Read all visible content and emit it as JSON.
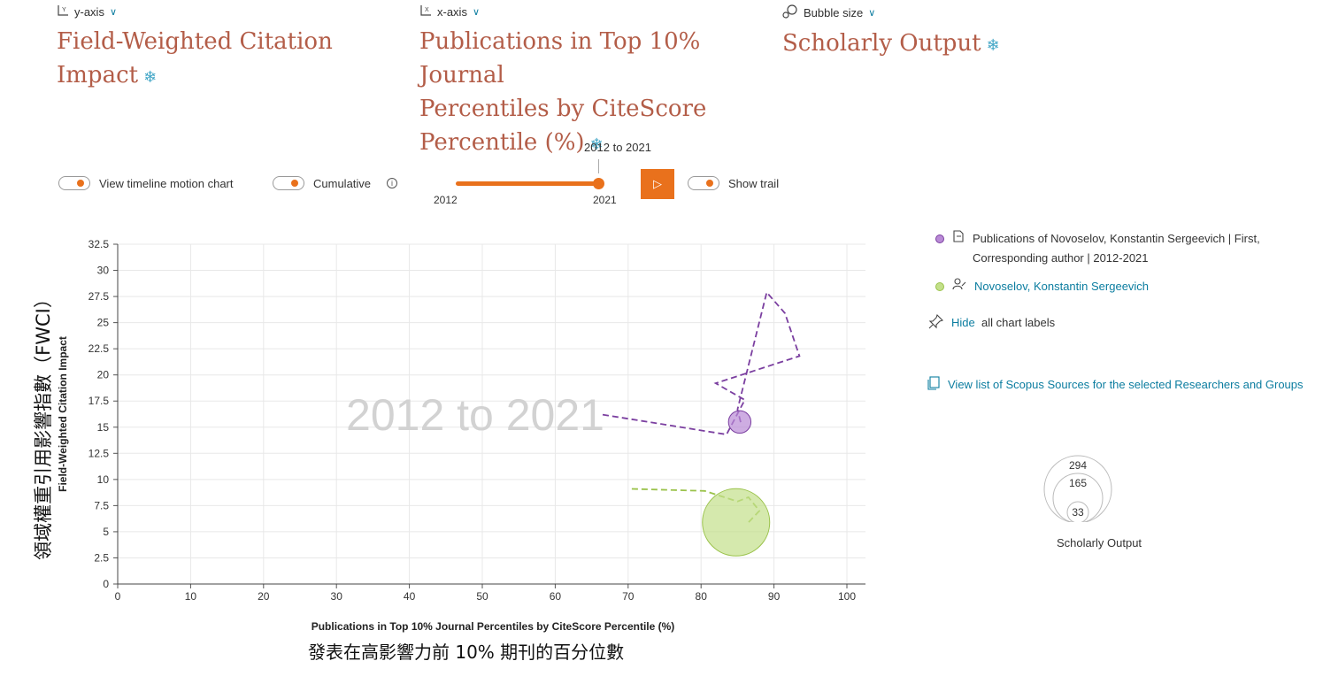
{
  "selectors": {
    "y_axis": {
      "label": "y-axis",
      "metric": "Field-Weighted Citation Impact"
    },
    "x_axis": {
      "label": "x-axis",
      "metric_line1": "Publications in Top 10% Journal",
      "metric_line2": "Percentiles by CiteScore",
      "metric_line3": "Percentile (%)"
    },
    "bubble": {
      "label": "Bubble size",
      "metric": "Scholarly Output"
    }
  },
  "controls": {
    "timeline_toggle": "View timeline motion chart",
    "cumulative_toggle": "Cumulative",
    "info_glyph": "i",
    "slider_range_label": "2012 to 2021",
    "slider_start": "2012",
    "slider_end": "2021",
    "play_glyph": "▷",
    "trail_toggle": "Show trail"
  },
  "legend": {
    "series1_line1": "Publications of Novoselov, Konstantin Sergeevich | First,",
    "series1_line2": "Corresponding author | 2012-2021",
    "series2": "Novoselov, Konstantin Sergeevich",
    "hide_link": "Hide",
    "hide_rest": "all chart labels",
    "view_list": "View list of Scopus Sources for the selected Researchers and Groups",
    "size_values": [
      "294",
      "165",
      "33"
    ],
    "size_caption": "Scholarly Output"
  },
  "annotations": {
    "y_chinese": "領域權重引用影響指數（FWCI）",
    "x_chinese": "發表在高影響力前 10% 期刊的百分位數"
  },
  "colors": {
    "accent": "#e9711c",
    "metric_text": "#b35d48",
    "link": "#0c7da0",
    "series1": "#7b3fa0",
    "series1_fill": "#b98ad6",
    "series2": "#9ac24a",
    "series2_fill": "#c3e08a"
  },
  "chart_data": {
    "type": "scatter",
    "watermark": "2012 to 2021",
    "xlabel": "Publications in Top 10% Journal Percentiles by CiteScore Percentile (%)",
    "ylabel": "Field-Weighted Citation Impact",
    "xlim": [
      0,
      100
    ],
    "ylim": [
      0,
      32.5
    ],
    "x_ticks": [
      0,
      10,
      20,
      30,
      40,
      50,
      60,
      70,
      80,
      90,
      100
    ],
    "y_ticks": [
      0,
      2.5,
      5,
      7.5,
      10,
      12.5,
      15,
      17.5,
      20,
      22.5,
      25,
      27.5,
      30,
      32.5
    ],
    "grid": true,
    "series": [
      {
        "name": "Publications of Novoselov, Konstantin Sergeevich | First, Corresponding author | 2012-2021",
        "color": "#7b3fa0",
        "fill": "#b98ad6",
        "trail": [
          [
            66.5,
            16.2
          ],
          [
            83.5,
            14.3
          ],
          [
            86,
            17.6
          ],
          [
            82,
            19.2
          ],
          [
            93.5,
            21.8
          ],
          [
            91.5,
            25.9
          ],
          [
            89,
            27.9
          ],
          [
            85,
            16.7
          ],
          [
            85.5,
            15.3
          ]
        ],
        "current": {
          "x": 85.3,
          "y": 15.5,
          "size": 33
        }
      },
      {
        "name": "Novoselov, Konstantin Sergeevich",
        "color": "#9ac24a",
        "fill": "#c3e08a",
        "trail": [
          [
            70.5,
            9.1
          ],
          [
            80.5,
            8.9
          ],
          [
            85,
            7.9
          ],
          [
            86.5,
            8.3
          ],
          [
            88,
            7.0
          ],
          [
            86.5,
            5.9
          ]
        ],
        "current": {
          "x": 84.8,
          "y": 5.9,
          "size": 294
        }
      }
    ]
  }
}
